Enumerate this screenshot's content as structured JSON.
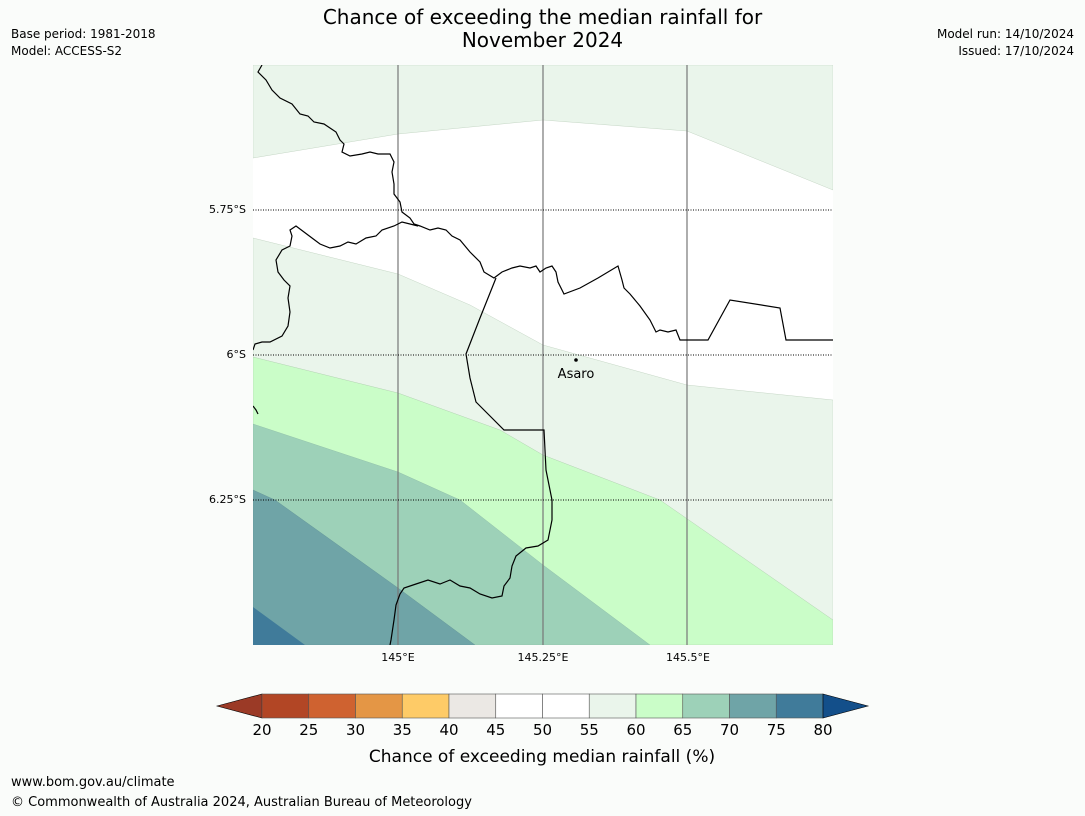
{
  "header": {
    "title_line1": "Chance of exceeding the median rainfall for",
    "title_line2": "November 2024",
    "base_period": "Base period: 1981-2018",
    "model": "Model: ACCESS-S2",
    "model_run": "Model run: 14/10/2024",
    "issued": "Issued: 17/10/2024"
  },
  "map": {
    "lat_labels": [
      "5.75°S",
      "6°S",
      "6.25°S"
    ],
    "lon_labels": [
      "145°E",
      "145.25°E",
      "145.5°E"
    ],
    "place_name": "Asaro"
  },
  "legend": {
    "title": "Chance of exceeding median rainfall (%)",
    "ticks": [
      "20",
      "25",
      "30",
      "35",
      "40",
      "45",
      "50",
      "55",
      "60",
      "65",
      "70",
      "75",
      "80"
    ],
    "colors": [
      "#b24625",
      "#cf6230",
      "#e49645",
      "#fecb67",
      "#ebe8e4",
      "#ffffff",
      "#ffffff",
      "#eaf5eb",
      "#cafdc8",
      "#9dd1b8",
      "#6fa4a7",
      "#407b9a"
    ],
    "under_color": "#9b3a26",
    "over_color": "#134f8a"
  },
  "footer": {
    "url": "www.bom.gov.au/climate",
    "copyright": "© Commonwealth of Australia 2024, Australian Bureau of Meteorology"
  }
}
